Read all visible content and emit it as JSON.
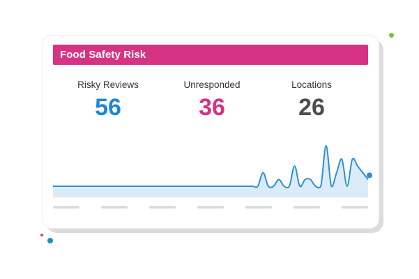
{
  "widget": {
    "title": "Food Safety Risk"
  },
  "stats": [
    {
      "label": "Risky Reviews",
      "value": "56",
      "color": "#1e88d2"
    },
    {
      "label": "Unresponded",
      "value": "36",
      "color": "#d63384"
    },
    {
      "label": "Locations",
      "value": "26",
      "color": "#4d4d4d"
    }
  ],
  "colors": {
    "accent_pink": "#d63384",
    "accent_blue": "#1e88d2",
    "accent_green": "#7cc242",
    "line": "#2d8fd6",
    "area": "#dcebf8",
    "placeholder": "#dcdcdc"
  },
  "chart_data": {
    "type": "area",
    "title": "",
    "xlabel": "",
    "ylabel": "",
    "x": [
      0,
      1,
      2,
      3,
      4,
      5,
      6,
      7,
      8,
      9,
      10,
      11,
      12,
      13,
      14,
      15,
      16,
      17,
      18,
      19,
      20,
      21,
      22,
      23,
      24,
      25,
      26,
      27,
      28,
      29,
      30,
      31,
      32,
      33,
      34,
      35,
      36,
      37,
      38,
      39,
      40,
      41,
      42,
      43,
      44,
      45,
      46,
      47,
      48,
      49,
      50,
      51,
      52,
      53,
      54,
      55,
      56,
      57,
      58,
      59,
      60
    ],
    "series": [
      {
        "values": [
          0,
          0,
          0,
          0,
          0,
          0,
          0,
          0,
          0,
          0,
          0,
          0,
          0,
          0,
          0,
          0,
          0,
          0,
          0,
          0,
          0,
          0,
          0,
          0,
          0,
          0,
          0,
          0,
          0,
          0,
          0,
          0,
          0,
          0,
          0,
          0,
          0,
          0,
          0,
          0,
          2,
          0,
          0,
          1,
          0,
          0,
          3,
          0,
          1,
          1,
          0,
          0,
          6,
          0,
          2,
          4,
          0,
          4,
          3,
          2,
          1
        ]
      }
    ],
    "ylim": [
      0,
      6
    ],
    "grid": false,
    "legend": "none"
  }
}
